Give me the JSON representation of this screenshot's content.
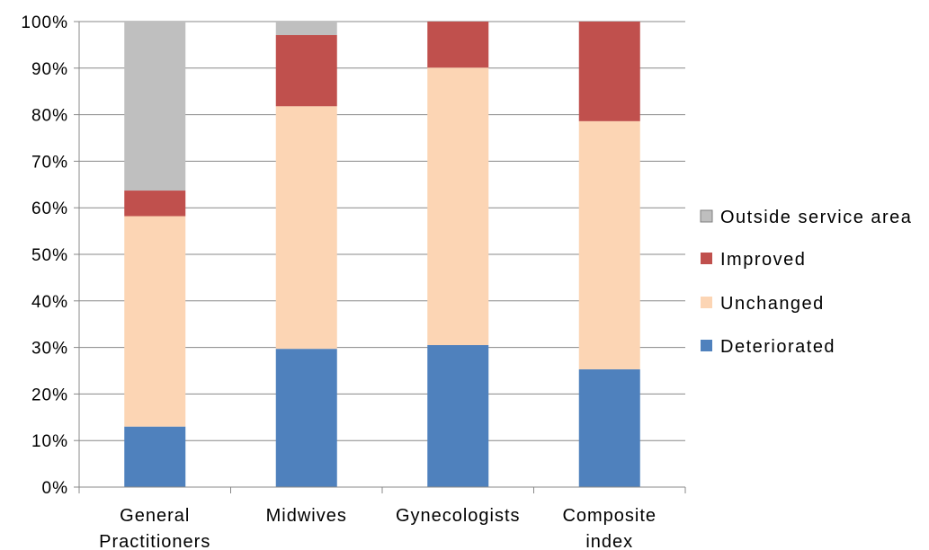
{
  "chart_data": {
    "type": "bar",
    "stacked": true,
    "categories": [
      "General Practitioners",
      "Midwives",
      "Gynecologists",
      "Composite index"
    ],
    "series": [
      {
        "name": "Deteriorated",
        "values": [
          13,
          29.7,
          30.5,
          25.3
        ],
        "color": "#4f81bd"
      },
      {
        "name": "Unchanged",
        "values": [
          45.2,
          52.1,
          59.6,
          53.3
        ],
        "color": "#fcd5b4"
      },
      {
        "name": "Improved",
        "values": [
          5.5,
          15.3,
          9.9,
          21.4
        ],
        "color": "#c0504d"
      },
      {
        "name": "Outside service area",
        "values": [
          36.3,
          2.9,
          0,
          0
        ],
        "color": "#bfbfbf"
      }
    ],
    "yticks": [
      "0%",
      "10%",
      "20%",
      "30%",
      "40%",
      "50%",
      "60%",
      "70%",
      "80%",
      "90%",
      "100%"
    ],
    "ylim": [
      0,
      100
    ],
    "grid": true,
    "legend_position": "right",
    "title": "",
    "xlabel": "",
    "ylabel": ""
  }
}
